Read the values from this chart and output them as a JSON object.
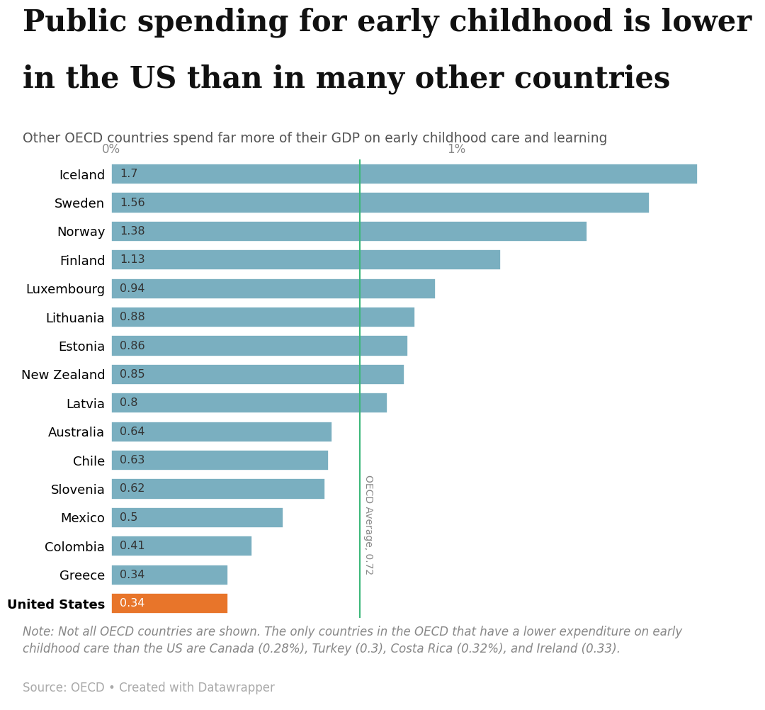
{
  "title_line1": "Public spending for early childhood is lower",
  "title_line2": "in the US than in many other countries",
  "subtitle": "Other OECD countries spend far more of their GDP on early childhood care and learning",
  "note": "Note: Not all OECD countries are shown. The only countries in the OECD that have a lower expenditure on early\nchildhood care than the US are Canada (0.28%), Turkey (0.3), Costa Rica (0.32%), and Ireland (0.33).",
  "source": "Source: OECD • Created with Datawrapper",
  "countries": [
    "Iceland",
    "Sweden",
    "Norway",
    "Finland",
    "Luxembourg",
    "Lithuania",
    "Estonia",
    "New Zealand",
    "Latvia",
    "Australia",
    "Chile",
    "Slovenia",
    "Mexico",
    "Colombia",
    "Greece",
    "United States"
  ],
  "values": [
    1.7,
    1.56,
    1.38,
    1.13,
    0.94,
    0.88,
    0.86,
    0.85,
    0.8,
    0.64,
    0.63,
    0.62,
    0.5,
    0.41,
    0.34,
    0.34
  ],
  "bar_color_default": "#7aafc0",
  "bar_color_us": "#e8752a",
  "oecd_average": 0.72,
  "oecd_label": "OECD Average, 0.72",
  "oecd_line_color": "#3db87a",
  "x_tick_labels": [
    "0%",
    "1%"
  ],
  "x_tick_positions": [
    0,
    1
  ],
  "xlim": [
    0,
    1.85
  ],
  "background_color": "#ffffff",
  "title_fontsize": 30,
  "subtitle_fontsize": 13.5,
  "bar_label_fontsize": 11.5,
  "tick_label_fontsize": 12,
  "note_fontsize": 12,
  "source_fontsize": 12
}
